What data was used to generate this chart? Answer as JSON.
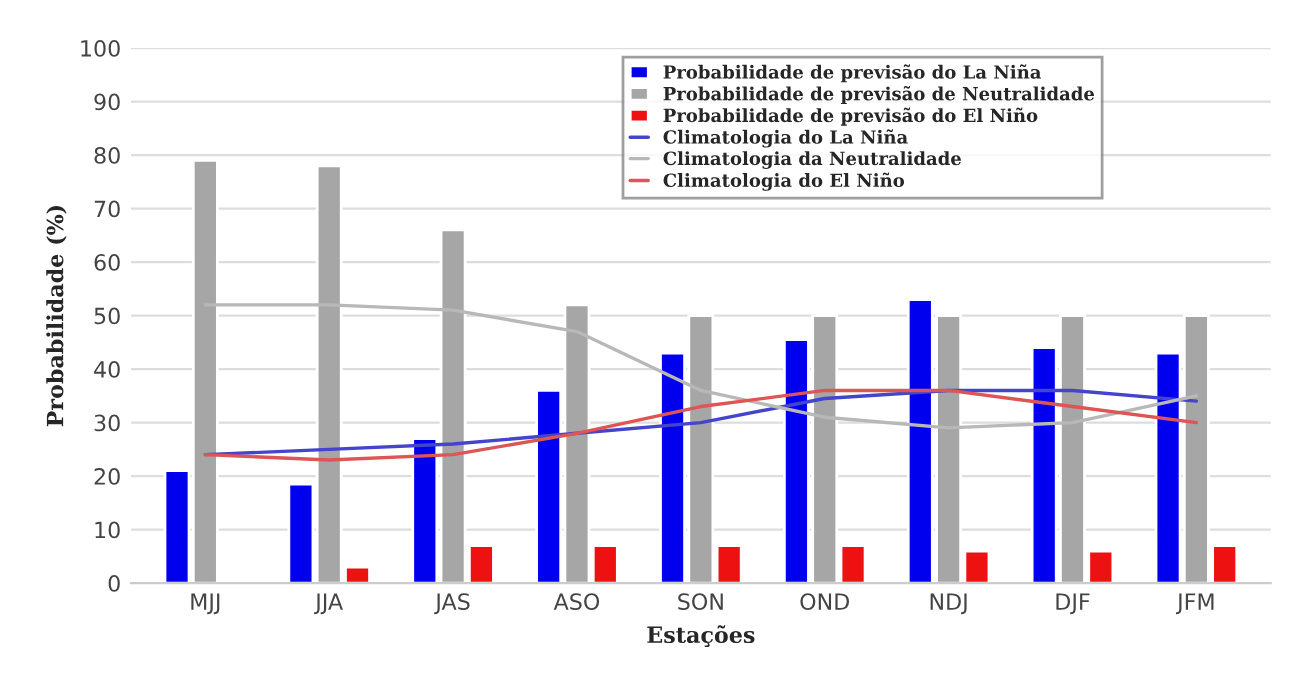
{
  "chart_data": {
    "type": "bar",
    "xlabel": "Estações",
    "ylabel": "Probabilidade (%)",
    "categories": [
      "MJJ",
      "JJA",
      "JAS",
      "ASO",
      "SON",
      "OND",
      "NDJ",
      "DJF",
      "JFM"
    ],
    "series": [
      {
        "name": "Probabilidade de previsão do La Niña",
        "color": "#0000ee",
        "values": [
          21,
          18.5,
          27,
          36,
          43,
          45.5,
          53,
          44,
          43
        ]
      },
      {
        "name": "Probabilidade de previsão de Neutralidade",
        "color": "#a6a6a6",
        "values": [
          79,
          78,
          66,
          52,
          50,
          50,
          50,
          50,
          50
        ]
      },
      {
        "name": "Probabilidade de previsão do El Niño",
        "color": "#ee1111",
        "values": [
          null,
          3,
          7,
          7,
          7,
          7,
          6,
          6,
          7
        ]
      },
      {
        "name": "Climatologia do La Niña",
        "type": "line",
        "color": "#4444cc",
        "values": [
          24,
          25,
          26,
          28,
          30,
          34.5,
          36,
          36,
          34
        ]
      },
      {
        "name": "Climatologia da Neutralidade",
        "type": "line",
        "color": "#b8b8b8",
        "values": [
          52,
          52,
          51,
          47,
          36,
          31,
          29,
          30,
          35
        ]
      },
      {
        "name": "Climatologia do El Niño",
        "type": "line",
        "color": "#dd5555",
        "values": [
          24,
          23,
          24,
          28,
          33,
          36,
          36,
          33,
          30
        ]
      }
    ],
    "ylim": [
      0,
      100
    ],
    "yticks": [
      0,
      10,
      20,
      30,
      40,
      50,
      60,
      70,
      80,
      90,
      100
    ],
    "grid": "y",
    "legend": "top right"
  }
}
